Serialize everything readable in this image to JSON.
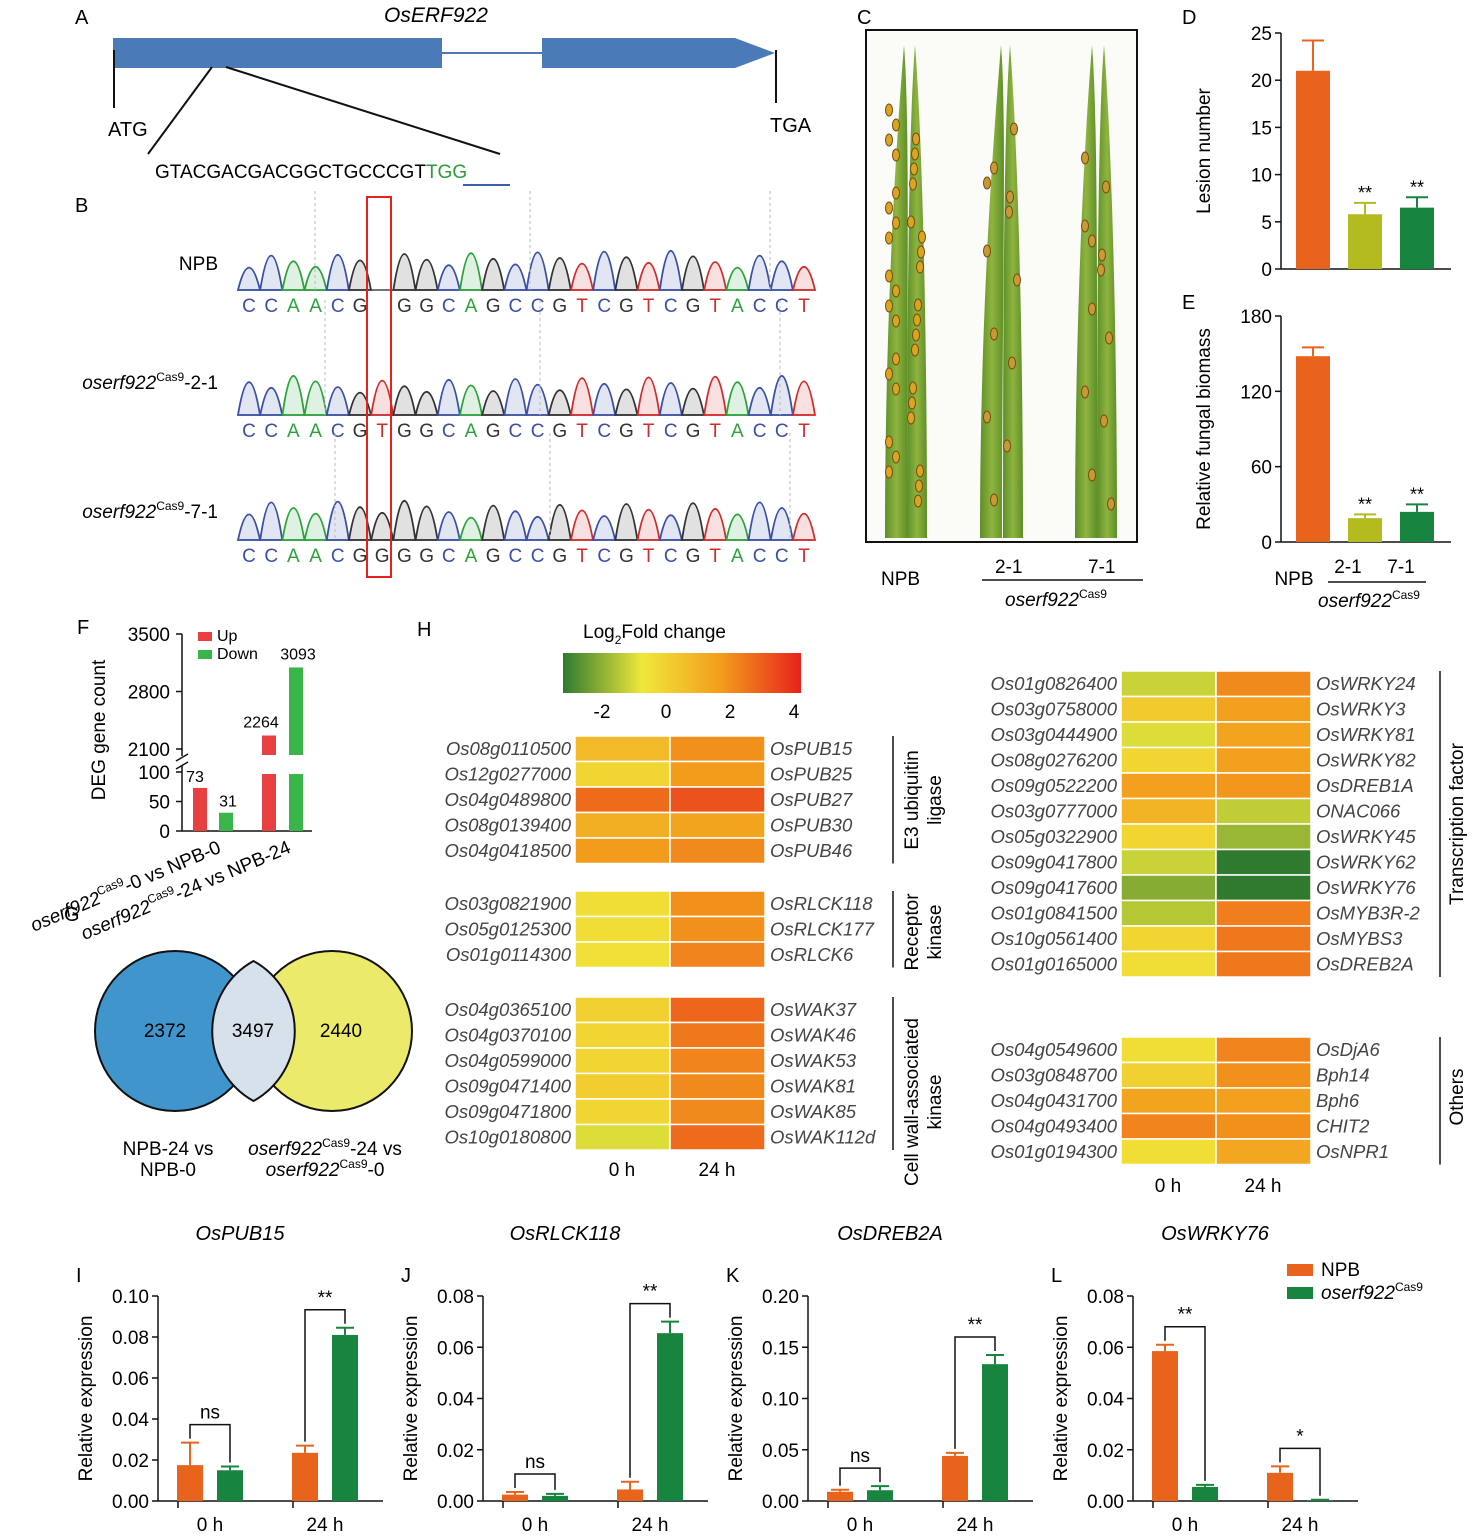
{
  "colors": {
    "npb": "#e8641c",
    "mut": "#17843f",
    "mut21": "#b3bb1e",
    "gene_bar": "#4a7ab7",
    "up": "#e84040",
    "down": "#39b54a",
    "venn_left": "#3f95cc",
    "venn_right": "#ecea6a",
    "venn_overlap": "#d7e1ec",
    "base_c": "#3a4fa8",
    "base_a": "#2aa43a",
    "base_g": "#333333",
    "base_t": "#d02c2c",
    "highlight_box": "#e8211e",
    "pam": "#2a9d3b"
  },
  "panelA": {
    "letter": "A",
    "gene": "OsERF922",
    "start": "ATG",
    "stop": "TGA",
    "guide": "GTACGACGACGGCTGCCCGT",
    "pam": "TGG"
  },
  "panelB": {
    "letter": "B",
    "superscript": "Cas9",
    "rows": [
      {
        "label": "NPB",
        "italic": false,
        "seq": [
          "C",
          "C",
          "A",
          "A",
          "C",
          "G",
          "",
          "G",
          "G",
          "C",
          "A",
          "G",
          "C",
          "C",
          "G",
          "T",
          "C",
          "G",
          "T",
          "C",
          "G",
          "T",
          "A",
          "C",
          "C",
          "T"
        ]
      },
      {
        "label": "oserf922",
        "suffix": "-2-1",
        "italic": true,
        "seq": [
          "C",
          "C",
          "A",
          "A",
          "C",
          "G",
          "T",
          "G",
          "G",
          "C",
          "A",
          "G",
          "C",
          "C",
          "G",
          "T",
          "C",
          "G",
          "T",
          "C",
          "G",
          "T",
          "A",
          "C",
          "C",
          "T"
        ]
      },
      {
        "label": "oserf922",
        "suffix": "-7-1",
        "italic": true,
        "seq": [
          "C",
          "C",
          "A",
          "A",
          "C",
          "G",
          "G",
          "G",
          "G",
          "C",
          "A",
          "G",
          "C",
          "C",
          "G",
          "T",
          "C",
          "G",
          "T",
          "C",
          "G",
          "T",
          "A",
          "C",
          "C",
          "T"
        ]
      }
    ]
  },
  "panelC": {
    "letter": "C",
    "labels": [
      "NPB",
      "2-1",
      "7-1"
    ],
    "group": "oserf922",
    "superscript": "Cas9"
  },
  "chart_data": [
    {
      "id": "D",
      "type": "bar",
      "ylabel": "Lesion number",
      "categories": [
        "NPB",
        "2-1",
        "7-1"
      ],
      "values": [
        21.0,
        5.8,
        6.5
      ],
      "errors": [
        3.2,
        1.2,
        1.1
      ],
      "sig": [
        "",
        "**",
        "**"
      ],
      "ylim": [
        0,
        25
      ],
      "yticks": [
        "0",
        "5",
        "10",
        "15",
        "20",
        "25"
      ]
    },
    {
      "id": "E",
      "type": "bar",
      "ylabel": "Relative fungal biomass",
      "categories": [
        "NPB",
        "2-1",
        "7-1"
      ],
      "values": [
        148,
        19,
        24
      ],
      "errors": [
        7,
        3,
        6
      ],
      "sig": [
        "",
        "**",
        "**"
      ],
      "ylim": [
        0,
        180
      ],
      "yticks": [
        "0",
        "60",
        "120",
        "180"
      ]
    },
    {
      "id": "F",
      "type": "bar",
      "ylabel": "DEG gene count",
      "categories": [
        "oserf922-0 vs NPB-0",
        "oserf922-24 vs NPB-24"
      ],
      "series": [
        {
          "name": "Up",
          "values": [
            73,
            2264
          ]
        },
        {
          "name": "Down",
          "values": [
            31,
            3093
          ]
        }
      ],
      "yticks_low": [
        "0",
        "50",
        "100"
      ],
      "yticks_high": [
        "2100",
        "2800",
        "3500"
      ],
      "broken_axis": true
    },
    {
      "id": "G",
      "type": "venn",
      "sets": [
        "NPB-24 vs NPB-0",
        "oserf922-24 vs oserf922-0"
      ],
      "values": {
        "left_only": 2372,
        "both": 3497,
        "right_only": 2440
      }
    },
    {
      "id": "H",
      "type": "heatmap",
      "title": "Log2Fold change",
      "scale": {
        "min": -2,
        "max": 4,
        "ticks": [
          "-2",
          "0",
          "2",
          "4"
        ]
      },
      "columns": [
        "0 h",
        "24 h"
      ],
      "groups": [
        {
          "name": "E3 ubiquitin ligase",
          "rows": [
            {
              "id": "Os08g0110500",
              "gene": "OsPUB15",
              "values": [
                1.2,
                2.2
              ]
            },
            {
              "id": "Os12g0277000",
              "gene": "OsPUB25",
              "values": [
                0.5,
                2.0
              ]
            },
            {
              "id": "Os04g0489800",
              "gene": "OsPUB27",
              "values": [
                2.8,
                3.2
              ]
            },
            {
              "id": "Os08g0139400",
              "gene": "OsPUB30",
              "values": [
                1.5,
                1.8
              ]
            },
            {
              "id": "Os04g0418500",
              "gene": "OsPUB46",
              "values": [
                2.0,
                2.3
              ]
            }
          ]
        },
        {
          "name": "Receptor kinase",
          "rows": [
            {
              "id": "Os03g0821900",
              "gene": "OsRLCK118",
              "values": [
                0.3,
                2.2
              ]
            },
            {
              "id": "Os05g0125300",
              "gene": "OsRLCK177",
              "values": [
                0.3,
                2.2
              ]
            },
            {
              "id": "Os01g0114300",
              "gene": "OsRLCK6",
              "values": [
                0.2,
                2.4
              ]
            }
          ]
        },
        {
          "name": "Cell wall-associated kinase",
          "rows": [
            {
              "id": "Os04g0365100",
              "gene": "OsWAK37",
              "values": [
                0.6,
                2.9
              ]
            },
            {
              "id": "Os04g0370100",
              "gene": "OsWAK46",
              "values": [
                0.5,
                2.6
              ]
            },
            {
              "id": "Os04g0599000",
              "gene": "OsWAK53",
              "values": [
                0.5,
                2.4
              ]
            },
            {
              "id": "Os09g0471400",
              "gene": "OsWAK81",
              "values": [
                0.7,
                2.3
              ]
            },
            {
              "id": "Os09g0471800",
              "gene": "OsWAK85",
              "values": [
                0.5,
                2.3
              ]
            },
            {
              "id": "Os10g0180800",
              "gene": "OsWAK112d",
              "values": [
                -0.2,
                2.8
              ]
            }
          ]
        },
        {
          "name": "Transcription factor",
          "rows": [
            {
              "id": "Os01g0826400",
              "gene": "OsWRKY24",
              "values": [
                -0.4,
                2.3
              ]
            },
            {
              "id": "Os03g0758000",
              "gene": "OsWRKY3",
              "values": [
                0.8,
                1.9
              ]
            },
            {
              "id": "Os03g0444900",
              "gene": "OsWRKY81",
              "values": [
                -0.2,
                1.8
              ]
            },
            {
              "id": "Os08g0276200",
              "gene": "OsWRKY82",
              "values": [
                0.5,
                1.9
              ]
            },
            {
              "id": "Os09g0522200",
              "gene": "OsDREB1A",
              "values": [
                1.9,
                2.1
              ]
            },
            {
              "id": "Os03g0777000",
              "gene": "ONAC066",
              "values": [
                1.4,
                -0.5
              ]
            },
            {
              "id": "Os05g0322900",
              "gene": "OsWRKY45",
              "values": [
                0.5,
                -0.9
              ]
            },
            {
              "id": "Os09g0417800",
              "gene": "OsWRKY62",
              "values": [
                -0.4,
                -2.0
              ]
            },
            {
              "id": "Os09g0417600",
              "gene": "OsWRKY76",
              "values": [
                -1.1,
                -2.1
              ]
            },
            {
              "id": "Os01g0841500",
              "gene": "OsMYB3R-2",
              "values": [
                -0.6,
                2.5
              ]
            },
            {
              "id": "Os10g0561400",
              "gene": "OsMYBS3",
              "values": [
                0.5,
                2.6
              ]
            },
            {
              "id": "Os01g0165000",
              "gene": "OsDREB2A",
              "values": [
                0.3,
                2.6
              ]
            }
          ]
        },
        {
          "name": "Others",
          "rows": [
            {
              "id": "Os04g0549600",
              "gene": "OsDjA6",
              "values": [
                0.3,
                2.4
              ]
            },
            {
              "id": "Os03g0848700",
              "gene": "Bph14",
              "values": [
                0.6,
                2.2
              ]
            },
            {
              "id": "Os04g0431700",
              "gene": "Bph6",
              "values": [
                1.8,
                1.9
              ]
            },
            {
              "id": "Os04g0493400",
              "gene": "CHIT2",
              "values": [
                2.4,
                2.2
              ]
            },
            {
              "id": "Os01g0194300",
              "gene": "OsNPR1",
              "values": [
                0.3,
                1.7
              ]
            }
          ]
        }
      ]
    },
    {
      "id": "I",
      "type": "bar",
      "title": "OsPUB15",
      "ylabel": "Relative expression",
      "categories": [
        "0 h",
        "24 h"
      ],
      "series": [
        {
          "name": "NPB",
          "values": [
            0.0175,
            0.0235
          ],
          "errors": [
            0.011,
            0.0035
          ]
        },
        {
          "name": "oserf922Cas9",
          "values": [
            0.015,
            0.081
          ],
          "errors": [
            0.0018,
            0.0035
          ]
        }
      ],
      "sig": [
        "ns",
        "**"
      ],
      "ylim": [
        0,
        0.1
      ],
      "yticks": [
        "0.00",
        "0.02",
        "0.04",
        "0.06",
        "0.08",
        "0.10"
      ]
    },
    {
      "id": "J",
      "type": "bar",
      "title": "OsRLCK118",
      "ylabel": "Relative expression",
      "categories": [
        "0 h",
        "24 h"
      ],
      "series": [
        {
          "name": "NPB",
          "values": [
            0.0025,
            0.0045
          ],
          "errors": [
            0.001,
            0.003
          ]
        },
        {
          "name": "oserf922Cas9",
          "values": [
            0.002,
            0.0655
          ],
          "errors": [
            0.0008,
            0.0045
          ]
        }
      ],
      "sig": [
        "ns",
        "**"
      ],
      "ylim": [
        0,
        0.08
      ],
      "yticks": [
        "0.00",
        "0.02",
        "0.04",
        "0.06",
        "0.08"
      ]
    },
    {
      "id": "K",
      "type": "bar",
      "title": "OsDREB2A",
      "ylabel": "Relative expression",
      "categories": [
        "0 h",
        "24 h"
      ],
      "series": [
        {
          "name": "NPB",
          "values": [
            0.009,
            0.044
          ],
          "errors": [
            0.002,
            0.003
          ]
        },
        {
          "name": "oserf922Cas9",
          "values": [
            0.0105,
            0.1335
          ],
          "errors": [
            0.004,
            0.009
          ]
        }
      ],
      "sig": [
        "ns",
        "**"
      ],
      "ylim": [
        0,
        0.2
      ],
      "yticks": [
        "0.00",
        "0.05",
        "0.10",
        "0.15",
        "0.20"
      ]
    },
    {
      "id": "L",
      "type": "bar",
      "title": "OsWRKY76",
      "ylabel": "Relative expression",
      "categories": [
        "0 h",
        "24 h"
      ],
      "series": [
        {
          "name": "NPB",
          "values": [
            0.0585,
            0.011
          ],
          "errors": [
            0.0025,
            0.0025
          ]
        },
        {
          "name": "oserf922Cas9",
          "values": [
            0.0055,
            0.0003
          ],
          "errors": [
            0.0008,
            0.0002
          ]
        }
      ],
      "sig": [
        "**",
        "*"
      ],
      "ylim": [
        0,
        0.08
      ],
      "yticks": [
        "0.00",
        "0.02",
        "0.04",
        "0.06",
        "0.08"
      ],
      "legend": {
        "position": "top-right",
        "entries": [
          "NPB",
          "oserf922"
        ],
        "superscript": "Cas9"
      }
    }
  ]
}
